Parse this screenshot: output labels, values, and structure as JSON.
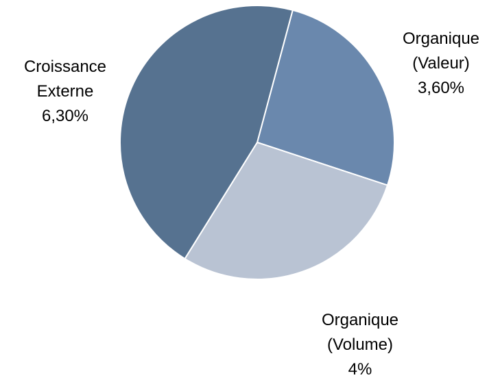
{
  "chart_data": {
    "type": "pie",
    "categories": [
      "Organique (Valeur)",
      "Organique (Volume)",
      "Croissance Externe"
    ],
    "values": [
      3.6,
      4,
      6.3
    ],
    "value_labels": [
      "3,60%",
      "4%",
      "6,30%"
    ],
    "colors": [
      "#6a88ad",
      "#b9c3d3",
      "#567290"
    ]
  }
}
